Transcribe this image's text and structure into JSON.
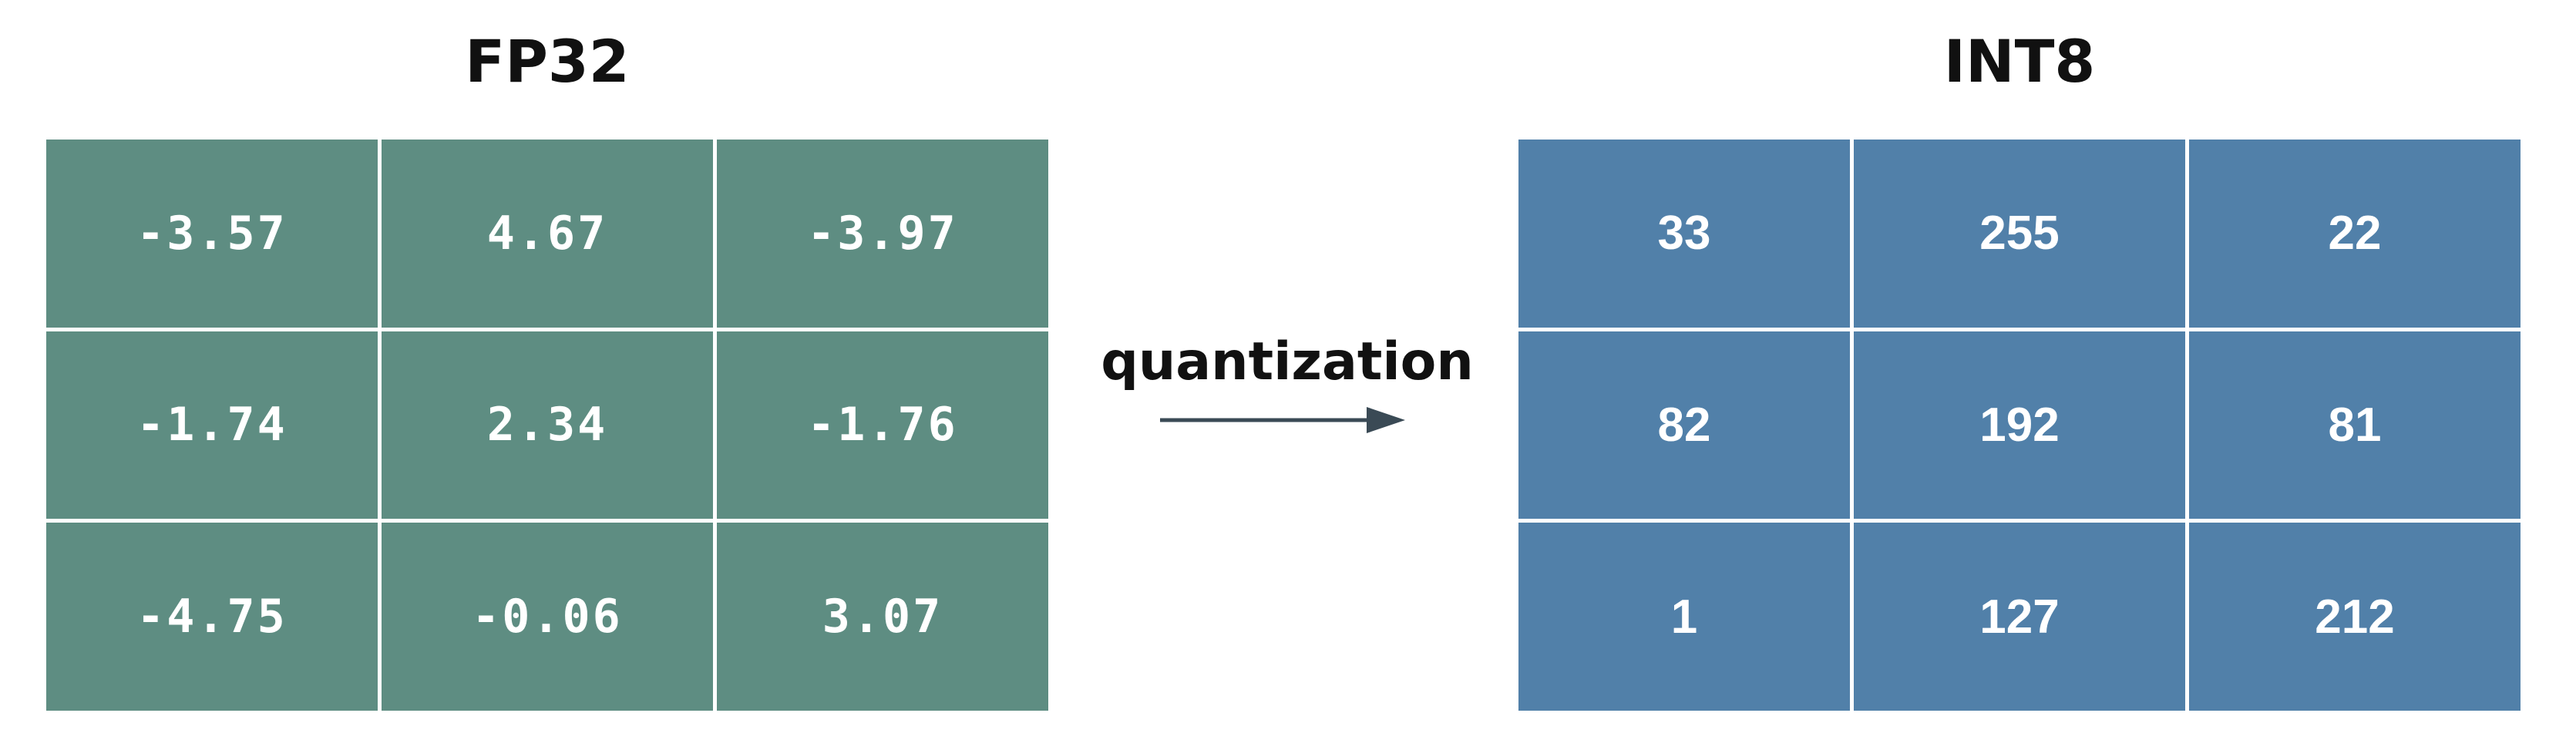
{
  "left_panel": {
    "title": "FP32",
    "rows": [
      [
        "-3.57",
        "4.67",
        "-3.97"
      ],
      [
        "-1.74",
        "2.34",
        "-1.76"
      ],
      [
        "-4.75",
        "-0.06",
        "3.07"
      ]
    ]
  },
  "right_panel": {
    "title": "INT8",
    "rows": [
      [
        "33",
        "255",
        "22"
      ],
      [
        "82",
        "192",
        "81"
      ],
      [
        "1",
        "127",
        "212"
      ]
    ]
  },
  "arrow_label": "quantization",
  "colors": {
    "fp32_cell": "#5e8d82",
    "int8_cell": "#5180a9",
    "arrow": "#3a4a55",
    "cell_text": "#ffffff"
  }
}
